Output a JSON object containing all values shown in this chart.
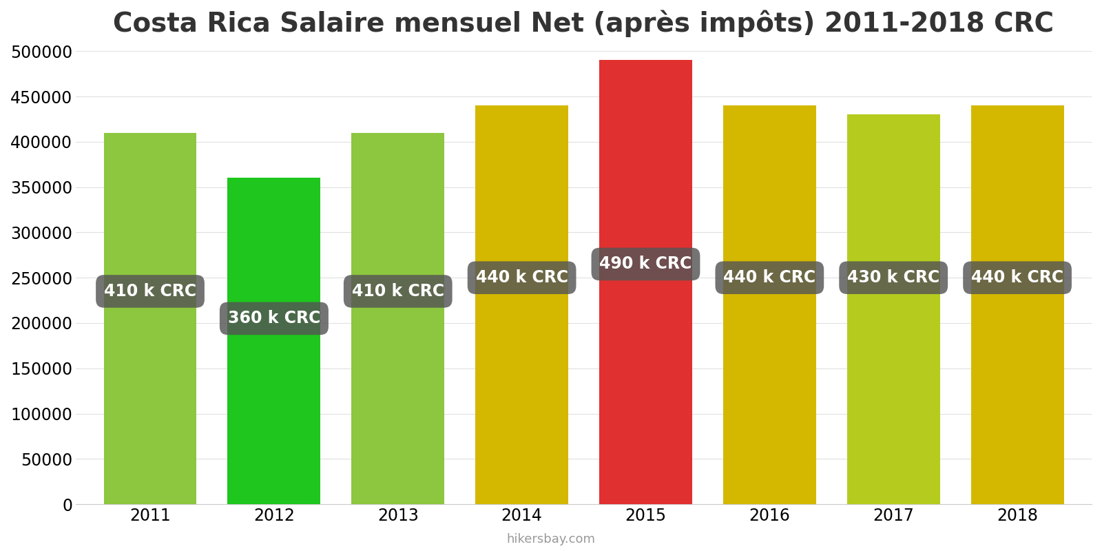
{
  "title": "Costa Rica Salaire mensuel Net (après impôts) 2011-2018 CRC",
  "years": [
    2011,
    2012,
    2013,
    2014,
    2015,
    2016,
    2017,
    2018
  ],
  "values": [
    410000,
    360000,
    410000,
    440000,
    490000,
    440000,
    430000,
    440000
  ],
  "labels": [
    "410 k CRC",
    "360 k CRC",
    "410 k CRC",
    "440 k CRC",
    "490 k CRC",
    "440 k CRC",
    "430 k CRC",
    "440 k CRC"
  ],
  "bar_colors": [
    "#8dc63f",
    "#1ec61e",
    "#8dc63f",
    "#d4b800",
    "#e03030",
    "#d4b800",
    "#b5cc1e",
    "#d4b800"
  ],
  "ylim": [
    0,
    500000
  ],
  "yticks": [
    0,
    50000,
    100000,
    150000,
    200000,
    250000,
    300000,
    350000,
    400000,
    450000,
    500000
  ],
  "label_box_color": "#555555",
  "label_text_color": "#ffffff",
  "label_fontsize": 17,
  "title_fontsize": 28,
  "tick_fontsize": 17,
  "footer": "hikersbay.com",
  "background_color": "#ffffff",
  "grid_color": "#e0e0e0",
  "bar_width": 0.75,
  "label_y_positions": [
    235000,
    205000,
    235000,
    250000,
    265000,
    250000,
    250000,
    250000
  ]
}
